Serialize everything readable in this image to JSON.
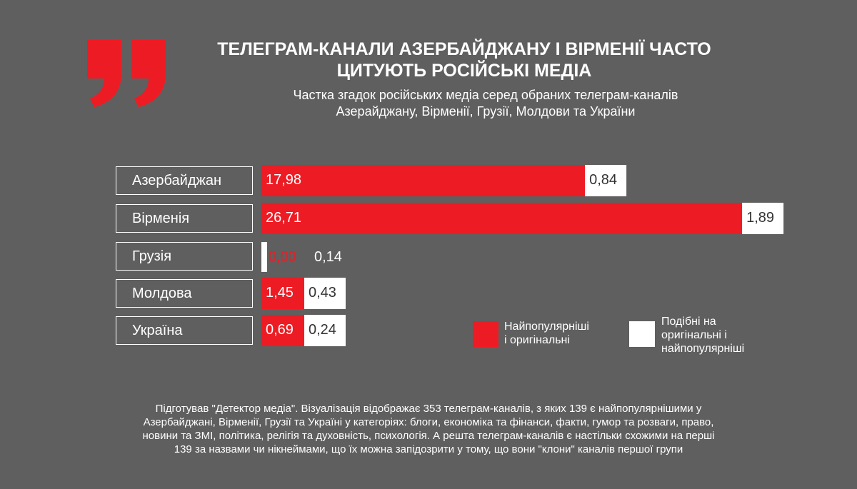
{
  "header": {
    "title_line1": "ТЕЛЕГРАМ-КАНАЛИ АЗЕРБАЙДЖАНУ І ВІРМЕНІЇ ЧАСТО",
    "title_line2": "ЦИТУЮТЬ РОСІЙСЬКІ МЕДІА",
    "subtitle_line1": "Частка згадок російських медіа серед обраних телеграм-каналів",
    "subtitle_line2": "Азерайджану, Вірменії, Грузії, Молдови та України"
  },
  "chart_data": {
    "type": "bar",
    "orientation": "horizontal",
    "stacked": true,
    "categories": [
      "Азербайджан",
      "Вірменія",
      "Грузія",
      "Молдова",
      "Україна"
    ],
    "series": [
      {
        "name": "Найпопулярніші і оригінальні",
        "color": "#ed1c24",
        "values": [
          17.98,
          26.71,
          0.0,
          1.45,
          0.69
        ],
        "labels": [
          "17,98",
          "26,71",
          "0,00",
          "1,45",
          "0,69"
        ]
      },
      {
        "name": "Подібні на оригінальні і найпопулярніші",
        "color": "#ffffff",
        "values": [
          0.84,
          1.89,
          0.14,
          0.43,
          0.24
        ],
        "labels": [
          "0,84",
          "1,89",
          "0,14",
          "0,43",
          "0,24"
        ]
      }
    ],
    "legend_position": "bottom-right",
    "grid": false
  },
  "legend": {
    "item1_line1": "Найпопулярніші",
    "item1_line2": "і оригінальні",
    "item2_line1": "Подібні на",
    "item2_line2": "оригінальні і",
    "item2_line3": "найпопулярніші"
  },
  "footnote": {
    "line1": "Підготував \"Детектор медіа\". Візуалізація відображає 353 телеграм-каналів, з яких 139 є найпопулярнішими у",
    "line2": "Азербайджані, Вірменії, Грузії та Україні у категоріях: блоги, економіка та фінанси, факти, гумор та розваги, право,",
    "line3": "новини та ЗМІ, політика, релігія та духовність, психологія. А решта телеграм-каналів є настільки схожими на перші",
    "line4": "139 за назвами чи нікнеймами, що їх можна запідозрити у тому, що вони \"клони\" каналів першої групи"
  },
  "colors": {
    "background": "#5f5f5f",
    "accent": "#ed1c24",
    "text": "#ffffff"
  }
}
